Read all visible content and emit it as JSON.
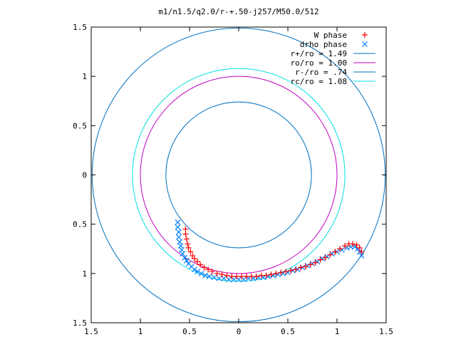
{
  "chart_data": {
    "type": "scatter",
    "title": "m1/n1.5/q2.0/r-+.50-j257/M50.0/512",
    "xlabel": "",
    "ylabel": "",
    "xlim": [
      -1.5,
      1.5
    ],
    "ylim": [
      -1.5,
      1.5
    ],
    "x_ticks": [
      -1.5,
      -1,
      -0.5,
      0,
      0.5,
      1,
      1.5
    ],
    "y_ticks": [
      1.5,
      1,
      0.5,
      0,
      -0.5,
      -1,
      -1.5
    ],
    "x_tick_labels": [
      "1.5",
      "1",
      "0.5",
      "0",
      "0.5",
      "1",
      "1.5"
    ],
    "y_tick_labels": [
      "1.5",
      "1",
      "0.5",
      "0",
      "0.5",
      "1",
      "1.5"
    ],
    "grid": false,
    "legend_position": "top-right",
    "legend": [
      {
        "label": "W phase",
        "marker": "+",
        "color": "#ff0000"
      },
      {
        "label": "drho phase",
        "marker": "x",
        "color": "#0080ff"
      },
      {
        "label": "r+/ro = 1.49",
        "marker": "line",
        "color": "#0070c0"
      },
      {
        "label": "ro/ro = 1.00",
        "marker": "line",
        "color": "#c000c0"
      },
      {
        "label": "r-/ro = .74",
        "marker": "line",
        "color": "#0070c0"
      },
      {
        "label": "rc/ro = 1.08",
        "marker": "line",
        "color": "#00e0e0"
      }
    ],
    "circles": [
      {
        "name": "r+/ro = 1.49",
        "radius": 1.49,
        "color": "#0070c0"
      },
      {
        "name": "ro/ro = 1.00",
        "radius": 1.0,
        "color": "#c000c0"
      },
      {
        "name": "r-/ro = .74",
        "radius": 0.74,
        "color": "#0070c0"
      },
      {
        "name": "rc/ro = 1.08",
        "radius": 1.08,
        "color": "#00e0e0"
      }
    ],
    "series": [
      {
        "name": "drho phase",
        "marker": "x",
        "color": "#0080ff",
        "x": [
          -0.62,
          -0.62,
          -0.61,
          -0.61,
          -0.6,
          -0.59,
          -0.58,
          -0.57,
          -0.55,
          -0.53,
          -0.51,
          -0.48,
          -0.45,
          -0.42,
          -0.38,
          -0.34,
          -0.3,
          -0.25,
          -0.2,
          -0.15,
          -0.1,
          -0.05,
          0.0,
          0.05,
          0.1,
          0.15,
          0.2,
          0.25,
          0.3,
          0.35,
          0.4,
          0.45,
          0.5,
          0.55,
          0.6,
          0.65,
          0.7,
          0.75,
          0.8,
          0.85,
          0.9,
          0.95,
          1.0,
          1.05,
          1.1,
          1.14,
          1.18,
          1.21,
          1.23,
          1.25
        ],
        "y": [
          -0.48,
          -0.53,
          -0.58,
          -0.63,
          -0.68,
          -0.72,
          -0.76,
          -0.8,
          -0.84,
          -0.87,
          -0.9,
          -0.93,
          -0.96,
          -0.98,
          -1.0,
          -1.02,
          -1.03,
          -1.04,
          -1.05,
          -1.05,
          -1.06,
          -1.06,
          -1.06,
          -1.06,
          -1.05,
          -1.05,
          -1.04,
          -1.04,
          -1.03,
          -1.02,
          -1.01,
          -1.0,
          -0.99,
          -0.97,
          -0.96,
          -0.94,
          -0.92,
          -0.9,
          -0.88,
          -0.85,
          -0.83,
          -0.8,
          -0.78,
          -0.76,
          -0.74,
          -0.73,
          -0.73,
          -0.75,
          -0.78,
          -0.82
        ]
      },
      {
        "name": "W phase",
        "marker": "+",
        "color": "#ff0000",
        "x": [
          -0.54,
          -0.54,
          -0.53,
          -0.52,
          -0.51,
          -0.49,
          -0.47,
          -0.45,
          -0.42,
          -0.39,
          -0.35,
          -0.31,
          -0.27,
          -0.22,
          -0.17,
          -0.12,
          -0.07,
          -0.02,
          0.03,
          0.08,
          0.13,
          0.18,
          0.23,
          0.28,
          0.33,
          0.38,
          0.43,
          0.48,
          0.53,
          0.58,
          0.63,
          0.68,
          0.73,
          0.78,
          0.83,
          0.88,
          0.93,
          0.98,
          1.03,
          1.08,
          1.12,
          1.16,
          1.2,
          1.23,
          1.25
        ],
        "y": [
          -0.55,
          -0.6,
          -0.65,
          -0.7,
          -0.74,
          -0.78,
          -0.82,
          -0.85,
          -0.88,
          -0.91,
          -0.94,
          -0.96,
          -0.98,
          -1.0,
          -1.01,
          -1.02,
          -1.03,
          -1.03,
          -1.03,
          -1.03,
          -1.03,
          -1.03,
          -1.02,
          -1.02,
          -1.01,
          -1.0,
          -0.99,
          -0.98,
          -0.97,
          -0.96,
          -0.94,
          -0.93,
          -0.91,
          -0.89,
          -0.86,
          -0.84,
          -0.81,
          -0.78,
          -0.75,
          -0.72,
          -0.7,
          -0.7,
          -0.71,
          -0.74,
          -0.78
        ]
      }
    ]
  }
}
